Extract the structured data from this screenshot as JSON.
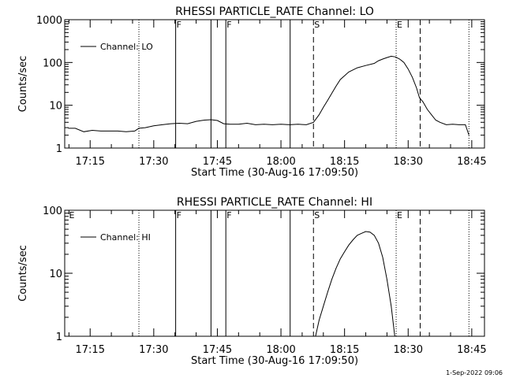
{
  "footer": {
    "timestamp": "1-Sep-2022 09:06"
  },
  "chart_data": [
    {
      "type": "line",
      "title": "RHESSI PARTICLE_RATE Channel: LO",
      "xlabel": "Start Time (30-Aug-16 17:09:50)",
      "ylabel": "Counts/sec",
      "yscale": "log",
      "xlim": [
        "17:09",
        "18:48"
      ],
      "ylim": [
        1,
        1000
      ],
      "xticks": [
        "17:15",
        "17:30",
        "17:45",
        "18:00",
        "18:15",
        "18:30",
        "18:45"
      ],
      "yticks": [
        "1",
        "10",
        "100",
        "1000"
      ],
      "legend": {
        "label": "Channel: LO",
        "placement": "top-left"
      },
      "markers": [
        {
          "time": "17:26:30",
          "style": "dotted",
          "label": ""
        },
        {
          "time": "17:35:10",
          "style": "solid",
          "label": "F"
        },
        {
          "time": "17:43:30",
          "style": "solid",
          "label": ""
        },
        {
          "time": "17:47:00",
          "style": "solid",
          "label": "F"
        },
        {
          "time": "18:02:10",
          "style": "solid",
          "label": ""
        },
        {
          "time": "18:07:40",
          "style": "dashed",
          "label": "S"
        },
        {
          "time": "18:27:10",
          "style": "dotted",
          "label": "E"
        },
        {
          "time": "18:32:50",
          "style": "dashed",
          "label": ""
        },
        {
          "time": "18:44:20",
          "style": "dotted",
          "label": ""
        }
      ],
      "series": [
        {
          "name": "Channel: LO",
          "x": [
            "17:09:50",
            "17:11:30",
            "17:13:30",
            "17:15:30",
            "17:17:30",
            "17:19:30",
            "17:21:30",
            "17:23:30",
            "17:25:30",
            "17:26:30",
            "17:28:00",
            "17:30:00",
            "17:32:00",
            "17:34:00",
            "17:36:00",
            "17:38:00",
            "17:40:00",
            "17:42:00",
            "17:43:30",
            "17:45:00",
            "17:46:30",
            "17:48:00",
            "17:50:00",
            "17:52:00",
            "17:54:00",
            "17:56:00",
            "17:58:00",
            "18:00:00",
            "18:02:00",
            "18:04:00",
            "18:06:00",
            "18:07:40",
            "18:09:00",
            "18:10:00",
            "18:11:00",
            "18:12:00",
            "18:13:00",
            "18:14:00",
            "18:16:00",
            "18:18:00",
            "18:20:00",
            "18:22:00",
            "18:23:00",
            "18:24:00",
            "18:25:00",
            "18:26:00",
            "18:27:00",
            "18:28:00",
            "18:29:00",
            "18:30:00",
            "18:31:00",
            "18:32:00",
            "18:32:40",
            "18:33:30",
            "18:34:30",
            "18:35:30",
            "18:36:30",
            "18:37:30",
            "18:39:00",
            "18:40:30",
            "18:42:00",
            "18:43:30",
            "18:44:20"
          ],
          "values": [
            2.9,
            2.9,
            2.4,
            2.6,
            2.5,
            2.5,
            2.5,
            2.4,
            2.5,
            2.9,
            3.0,
            3.3,
            3.5,
            3.7,
            3.8,
            3.7,
            4.2,
            4.5,
            4.6,
            4.4,
            3.7,
            3.6,
            3.6,
            3.8,
            3.5,
            3.6,
            3.5,
            3.6,
            3.5,
            3.6,
            3.5,
            4.0,
            6.0,
            9.0,
            13.0,
            19.0,
            28.0,
            40.0,
            60.0,
            75.0,
            85.0,
            95.0,
            110.0,
            120.0,
            130.0,
            140.0,
            135.0,
            120.0,
            100.0,
            70.0,
            45.0,
            25.0,
            15.0,
            12.0,
            8.0,
            6.0,
            4.5,
            4.0,
            3.5,
            3.6,
            3.5,
            3.5,
            2.0
          ]
        }
      ]
    },
    {
      "type": "line",
      "title": "RHESSI PARTICLE_RATE Channel: HI",
      "xlabel": "Start Time (30-Aug-16 17:09:50)",
      "ylabel": "Counts/sec",
      "yscale": "log",
      "xlim": [
        "17:09",
        "18:48"
      ],
      "ylim": [
        1,
        100
      ],
      "xticks": [
        "17:15",
        "17:30",
        "17:45",
        "18:00",
        "18:15",
        "18:30",
        "18:45"
      ],
      "yticks": [
        "1",
        "10",
        "100"
      ],
      "legend": {
        "label": "Channel: HI",
        "placement": "top-left"
      },
      "markers": [
        {
          "time": "17:09:50",
          "style": "none",
          "label": "E"
        },
        {
          "time": "17:26:30",
          "style": "dotted",
          "label": ""
        },
        {
          "time": "17:35:10",
          "style": "solid",
          "label": "F"
        },
        {
          "time": "17:43:30",
          "style": "solid",
          "label": ""
        },
        {
          "time": "17:47:00",
          "style": "solid",
          "label": "F"
        },
        {
          "time": "18:02:10",
          "style": "solid",
          "label": ""
        },
        {
          "time": "18:07:40",
          "style": "dashed",
          "label": "S"
        },
        {
          "time": "18:27:10",
          "style": "dotted",
          "label": "E"
        },
        {
          "time": "18:32:50",
          "style": "dashed",
          "label": ""
        },
        {
          "time": "18:44:20",
          "style": "dotted",
          "label": ""
        }
      ],
      "series": [
        {
          "name": "Channel: HI",
          "x": [
            "18:08:10",
            "18:09:00",
            "18:10:00",
            "18:11:00",
            "18:12:00",
            "18:13:00",
            "18:14:00",
            "18:15:00",
            "18:16:00",
            "18:17:00",
            "18:18:00",
            "18:19:00",
            "18:20:00",
            "18:21:00",
            "18:22:00",
            "18:23:00",
            "18:24:00",
            "18:25:00",
            "18:26:00",
            "18:26:50"
          ],
          "values": [
            1.0,
            1.8,
            3.0,
            5.0,
            8.0,
            12.0,
            17.0,
            22.0,
            28.0,
            34.0,
            40.0,
            43.0,
            46.0,
            45.0,
            40.0,
            30.0,
            18.0,
            8.0,
            3.0,
            1.0
          ]
        }
      ]
    }
  ]
}
